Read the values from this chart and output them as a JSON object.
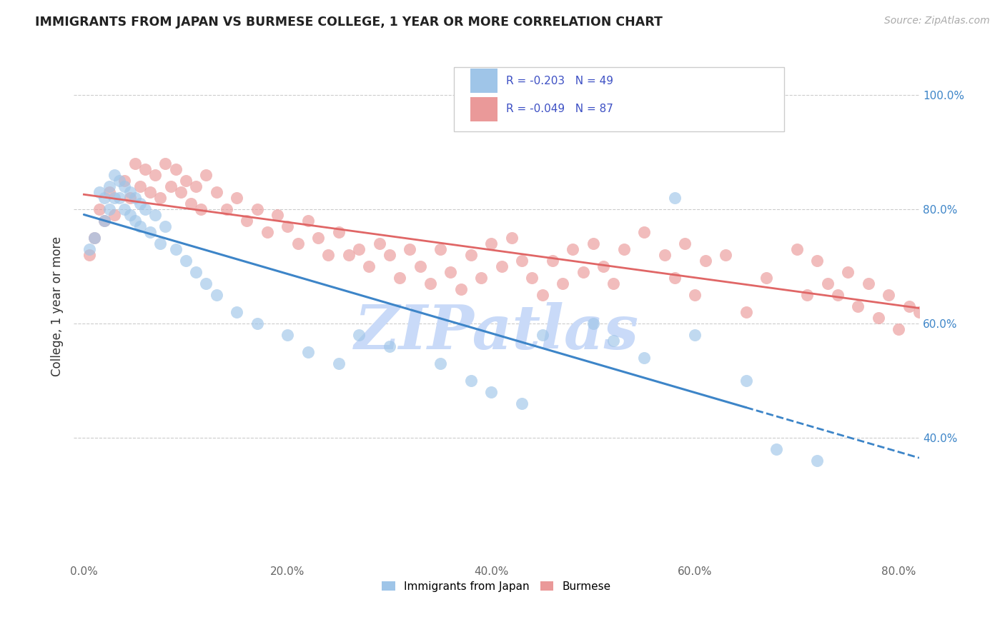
{
  "title": "IMMIGRANTS FROM JAPAN VS BURMESE COLLEGE, 1 YEAR OR MORE CORRELATION CHART",
  "source": "Source: ZipAtlas.com",
  "ylabel": "College, 1 year or more",
  "x_tick_labels": [
    "0.0%",
    "20.0%",
    "40.0%",
    "60.0%",
    "80.0%"
  ],
  "x_tick_vals": [
    0.0,
    0.2,
    0.4,
    0.6,
    0.8
  ],
  "y_tick_labels_right": [
    "100.0%",
    "80.0%",
    "60.0%",
    "40.0%"
  ],
  "y_tick_vals": [
    1.0,
    0.8,
    0.6,
    0.4
  ],
  "xlim": [
    -0.01,
    0.82
  ],
  "ylim": [
    0.18,
    1.08
  ],
  "legend_labels": [
    "Immigrants from Japan",
    "Burmese"
  ],
  "R_japan": -0.203,
  "N_japan": 49,
  "R_burmese": -0.049,
  "N_burmese": 87,
  "color_japan": "#9fc5e8",
  "color_burmese": "#ea9999",
  "color_line_japan": "#3d85c8",
  "color_line_burmese": "#e06666",
  "background_color": "#ffffff",
  "grid_color": "#cccccc",
  "watermark_text": "ZIPatlas",
  "watermark_color": "#c9daf8",
  "japan_x": [
    0.005,
    0.01,
    0.015,
    0.02,
    0.02,
    0.025,
    0.025,
    0.03,
    0.03,
    0.035,
    0.035,
    0.04,
    0.04,
    0.045,
    0.045,
    0.05,
    0.05,
    0.055,
    0.055,
    0.06,
    0.065,
    0.07,
    0.075,
    0.08,
    0.09,
    0.1,
    0.11,
    0.12,
    0.13,
    0.15,
    0.17,
    0.2,
    0.22,
    0.25,
    0.27,
    0.3,
    0.35,
    0.38,
    0.4,
    0.43,
    0.45,
    0.5,
    0.52,
    0.55,
    0.58,
    0.6,
    0.65,
    0.68,
    0.72
  ],
  "japan_y": [
    0.73,
    0.75,
    0.83,
    0.82,
    0.78,
    0.84,
    0.8,
    0.86,
    0.82,
    0.85,
    0.82,
    0.84,
    0.8,
    0.83,
    0.79,
    0.82,
    0.78,
    0.81,
    0.77,
    0.8,
    0.76,
    0.79,
    0.74,
    0.77,
    0.73,
    0.71,
    0.69,
    0.67,
    0.65,
    0.62,
    0.6,
    0.58,
    0.55,
    0.53,
    0.58,
    0.56,
    0.53,
    0.5,
    0.48,
    0.46,
    0.58,
    0.6,
    0.57,
    0.54,
    0.82,
    0.58,
    0.5,
    0.38,
    0.36
  ],
  "burmese_x": [
    0.005,
    0.01,
    0.015,
    0.02,
    0.025,
    0.03,
    0.04,
    0.045,
    0.05,
    0.055,
    0.06,
    0.065,
    0.07,
    0.075,
    0.08,
    0.085,
    0.09,
    0.095,
    0.1,
    0.105,
    0.11,
    0.115,
    0.12,
    0.13,
    0.14,
    0.15,
    0.16,
    0.17,
    0.18,
    0.19,
    0.2,
    0.21,
    0.22,
    0.23,
    0.24,
    0.25,
    0.26,
    0.27,
    0.28,
    0.29,
    0.3,
    0.31,
    0.32,
    0.33,
    0.34,
    0.35,
    0.36,
    0.37,
    0.38,
    0.39,
    0.4,
    0.41,
    0.42,
    0.43,
    0.44,
    0.45,
    0.46,
    0.47,
    0.48,
    0.49,
    0.5,
    0.51,
    0.52,
    0.53,
    0.55,
    0.57,
    0.58,
    0.59,
    0.6,
    0.61,
    0.63,
    0.65,
    0.67,
    0.7,
    0.71,
    0.72,
    0.73,
    0.74,
    0.75,
    0.76,
    0.77,
    0.78,
    0.79,
    0.8,
    0.81,
    0.82,
    0.83
  ],
  "burmese_y": [
    0.72,
    0.75,
    0.8,
    0.78,
    0.83,
    0.79,
    0.85,
    0.82,
    0.88,
    0.84,
    0.87,
    0.83,
    0.86,
    0.82,
    0.88,
    0.84,
    0.87,
    0.83,
    0.85,
    0.81,
    0.84,
    0.8,
    0.86,
    0.83,
    0.8,
    0.82,
    0.78,
    0.8,
    0.76,
    0.79,
    0.77,
    0.74,
    0.78,
    0.75,
    0.72,
    0.76,
    0.72,
    0.73,
    0.7,
    0.74,
    0.72,
    0.68,
    0.73,
    0.7,
    0.67,
    0.73,
    0.69,
    0.66,
    0.72,
    0.68,
    0.74,
    0.7,
    0.75,
    0.71,
    0.68,
    0.65,
    0.71,
    0.67,
    0.73,
    0.69,
    0.74,
    0.7,
    0.67,
    0.73,
    0.76,
    0.72,
    0.68,
    0.74,
    0.65,
    0.71,
    0.72,
    0.62,
    0.68,
    0.73,
    0.65,
    0.71,
    0.67,
    0.65,
    0.69,
    0.63,
    0.67,
    0.61,
    0.65,
    0.59,
    0.63,
    0.62,
    0.6
  ]
}
